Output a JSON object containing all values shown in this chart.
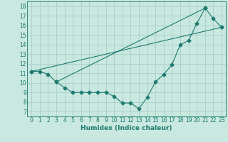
{
  "line1_x": [
    0,
    1,
    2,
    3,
    4,
    5,
    6,
    7,
    8,
    9,
    10,
    11,
    12,
    13,
    14,
    15,
    16,
    17,
    18,
    19,
    20,
    21,
    22,
    23
  ],
  "line1_y": [
    11.2,
    11.2,
    10.9,
    10.1,
    9.5,
    9.0,
    9.0,
    9.0,
    9.0,
    9.0,
    8.6,
    7.9,
    7.9,
    7.3,
    8.5,
    10.1,
    10.9,
    11.9,
    14.0,
    14.4,
    16.2,
    17.8,
    16.7,
    15.8
  ],
  "line2_x": [
    0,
    23
  ],
  "line2_y": [
    11.2,
    15.8
  ],
  "line3_x": [
    3,
    21
  ],
  "line3_y": [
    10.1,
    17.8
  ],
  "color": "#1e7a6e",
  "bg_color": "#c8e8e0",
  "grid_color": "#aad0c8",
  "xlabel": "Humidex (Indice chaleur)",
  "xlim": [
    -0.5,
    23.5
  ],
  "ylim": [
    6.5,
    18.5
  ],
  "yticks": [
    7,
    8,
    9,
    10,
    11,
    12,
    13,
    14,
    15,
    16,
    17,
    18
  ],
  "xticks": [
    0,
    1,
    2,
    3,
    4,
    5,
    6,
    7,
    8,
    9,
    10,
    11,
    12,
    13,
    14,
    15,
    16,
    17,
    18,
    19,
    20,
    21,
    22,
    23
  ],
  "marker": "D",
  "markersize": 2.5,
  "linewidth": 0.8
}
